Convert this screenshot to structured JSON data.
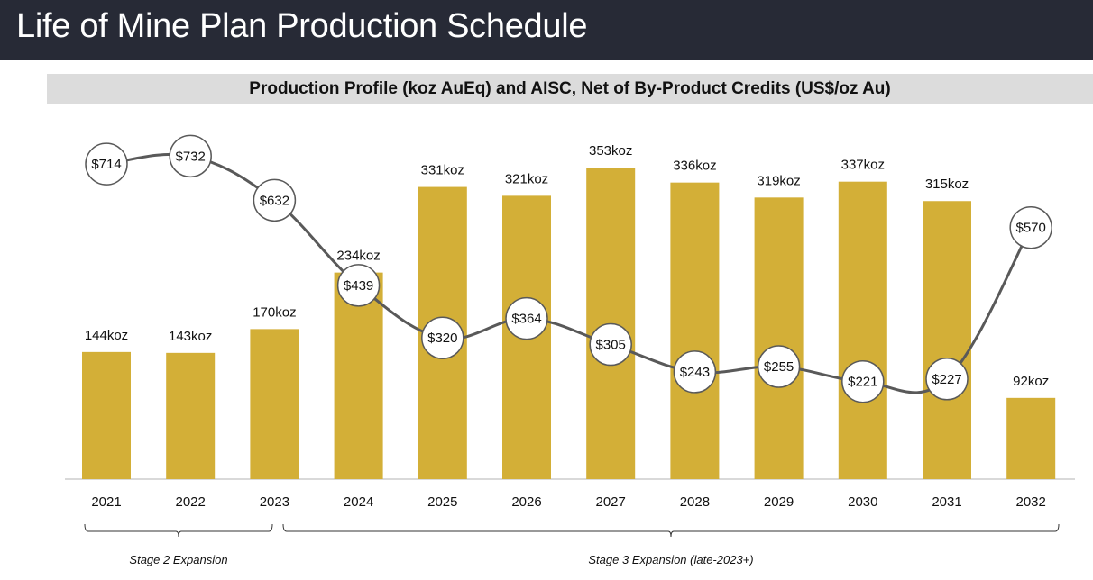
{
  "header": {
    "title": "Life of Mine Plan Production Schedule"
  },
  "subtitle": "Production Profile (koz AuEq) and AISC, Net of By-Product Credits (US$/oz Au)",
  "colors": {
    "title_bg": "#272a36",
    "subtitle_bg": "#dcdcdc",
    "bar": "#d3af37",
    "line": "#595959",
    "marker_fill": "#ffffff",
    "axis": "#d9d9d9"
  },
  "chart_data": {
    "type": "bar",
    "title": "Production Profile (koz AuEq) and AISC, Net of By-Product Credits (US$/oz Au)",
    "xlabel": "",
    "ylabel": "",
    "grid": false,
    "categories": [
      "2021",
      "2022",
      "2023",
      "2024",
      "2025",
      "2026",
      "2027",
      "2028",
      "2029",
      "2030",
      "2031",
      "2032"
    ],
    "series": [
      {
        "name": "Production (koz AuEq)",
        "type": "bar",
        "values": [
          144,
          143,
          170,
          234,
          331,
          321,
          353,
          336,
          319,
          337,
          315,
          92
        ],
        "labels": [
          "144koz",
          "143koz",
          "170koz",
          "234koz",
          "331koz",
          "321koz",
          "353koz",
          "336koz",
          "319koz",
          "337koz",
          "315koz",
          "92koz"
        ]
      },
      {
        "name": "AISC, Net of By-Product Credits (US$/oz Au)",
        "type": "line",
        "values": [
          714,
          732,
          632,
          439,
          320,
          364,
          305,
          243,
          255,
          221,
          227,
          570
        ],
        "labels": [
          "$714",
          "$732",
          "$632",
          "$439",
          "$320",
          "$364",
          "$305",
          "$243",
          "$255",
          "$221",
          "$227",
          "$570"
        ]
      }
    ],
    "bar_ylim": [
      0,
      360
    ],
    "line_ylim": [
      0,
      1090
    ],
    "annotations": [
      {
        "text": "Stage 2 Expansion",
        "span": [
          "2021",
          "2023"
        ]
      },
      {
        "text": "Stage 3 Expansion (late-2023+)",
        "span": [
          "2023",
          "2032"
        ]
      }
    ]
  }
}
